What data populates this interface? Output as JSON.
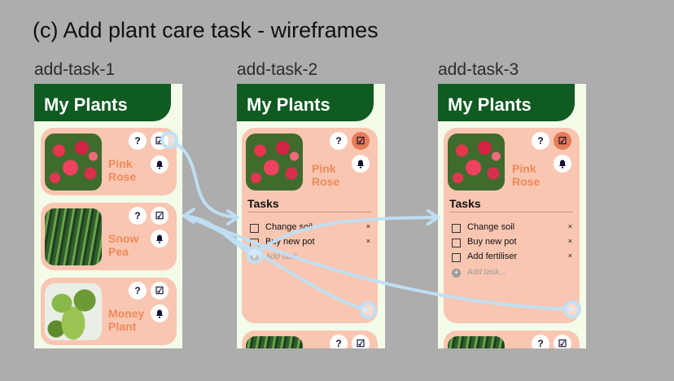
{
  "heading": "(c) Add plant care task - wireframes",
  "app_title": "My Plants",
  "icons": {
    "help": "?",
    "check": "☑",
    "bell": "bell-icon",
    "close": "×",
    "plus": "+"
  },
  "colors": {
    "header": "#0f5b22",
    "card": "#f9c6b1",
    "accent": "#ee8a5b",
    "active_icon": "#e77b55",
    "arrow": "#bfe1f7"
  },
  "frames": [
    {
      "label": "add-task-1",
      "plants": [
        {
          "name": "Pink Rose",
          "photo": "pink-rose-photo"
        },
        {
          "name": "Snow Pea",
          "photo": "snow-pea-photo"
        },
        {
          "name": "Money Plant",
          "photo": "money-plant-photo"
        }
      ]
    },
    {
      "label": "add-task-2",
      "plant": {
        "name": "Pink Rose"
      },
      "tasks_title": "Tasks",
      "tasks": [
        "Change soil",
        "Buy new pot"
      ],
      "add_task_placeholder": "Add task..."
    },
    {
      "label": "add-task-3",
      "plant": {
        "name": "Pink Rose"
      },
      "tasks_title": "Tasks",
      "tasks": [
        "Change soil",
        "Buy new pot",
        "Add fertiliser"
      ],
      "add_task_placeholder": "Add task..."
    }
  ]
}
